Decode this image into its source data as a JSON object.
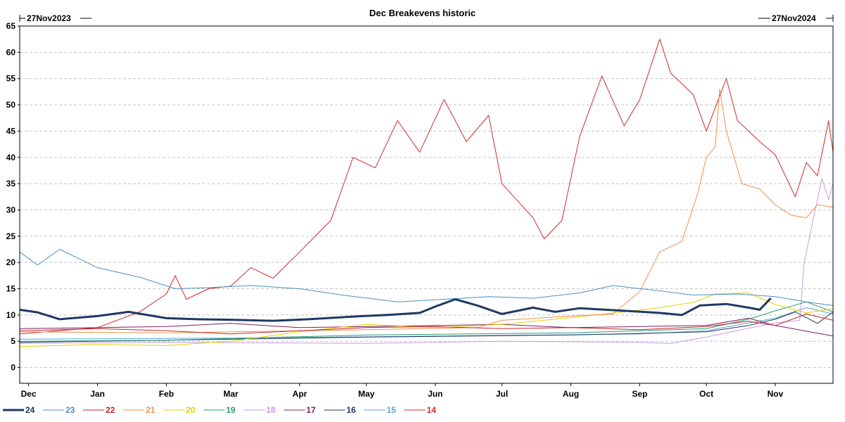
{
  "chart_data": {
    "type": "line",
    "title": "Dec Breakevens historic",
    "date_start_label": "27Nov2023",
    "date_end_label": "27Nov2024",
    "x_start": "2023-11-27",
    "x_end": "2024-11-27",
    "x_tick_labels": [
      {
        "label": "Dec",
        "date": "2023-12-01"
      },
      {
        "label": "Jan",
        "date": "2024-01-01"
      },
      {
        "label": "Feb",
        "date": "2024-02-01"
      },
      {
        "label": "Mar",
        "date": "2024-03-01"
      },
      {
        "label": "Apr",
        "date": "2024-04-01"
      },
      {
        "label": "May",
        "date": "2024-05-01"
      },
      {
        "label": "Jun",
        "date": "2024-06-01"
      },
      {
        "label": "Jul",
        "date": "2024-07-01"
      },
      {
        "label": "Aug",
        "date": "2024-08-01"
      },
      {
        "label": "Sep",
        "date": "2024-09-01"
      },
      {
        "label": "Oct",
        "date": "2024-10-01"
      },
      {
        "label": "Nov",
        "date": "2024-11-01"
      }
    ],
    "y_ticks": [
      0,
      5,
      10,
      15,
      20,
      25,
      30,
      35,
      40,
      45,
      50,
      55,
      60,
      65
    ],
    "ylim": [
      -3,
      65
    ],
    "grid": "horizontal dashed",
    "legend_position": "bottom",
    "series": [
      {
        "name": "24",
        "color": "#1f3864",
        "width": 3,
        "points": [
          [
            "2023-11-27",
            11
          ],
          [
            "2023-12-05",
            10.5
          ],
          [
            "2023-12-15",
            9.2
          ],
          [
            "2024-01-01",
            9.8
          ],
          [
            "2024-01-15",
            10.6
          ],
          [
            "2024-02-01",
            9.4
          ],
          [
            "2024-02-15",
            9.2
          ],
          [
            "2024-03-01",
            9.1
          ],
          [
            "2024-03-20",
            8.9
          ],
          [
            "2024-04-05",
            9.2
          ],
          [
            "2024-04-25",
            9.7
          ],
          [
            "2024-05-10",
            10.0
          ],
          [
            "2024-05-25",
            10.4
          ],
          [
            "2024-06-01",
            11.6
          ],
          [
            "2024-06-10",
            13.0
          ],
          [
            "2024-06-20",
            11.8
          ],
          [
            "2024-07-01",
            10.2
          ],
          [
            "2024-07-15",
            11.4
          ],
          [
            "2024-07-25",
            10.6
          ],
          [
            "2024-08-05",
            11.3
          ],
          [
            "2024-08-25",
            10.8
          ],
          [
            "2024-09-10",
            10.4
          ],
          [
            "2024-09-20",
            10.0
          ],
          [
            "2024-09-28",
            11.8
          ],
          [
            "2024-10-10",
            12.1
          ],
          [
            "2024-10-20",
            11.4
          ],
          [
            "2024-10-25",
            11.0
          ],
          [
            "2024-10-30",
            13.2
          ]
        ]
      },
      {
        "name": "23",
        "color": "#4a90c4",
        "width": 1,
        "points": [
          [
            "2023-11-27",
            22
          ],
          [
            "2023-12-05",
            19.5
          ],
          [
            "2023-12-15",
            22.5
          ],
          [
            "2024-01-01",
            19.0
          ],
          [
            "2024-01-20",
            17.2
          ],
          [
            "2024-02-05",
            15.0
          ],
          [
            "2024-02-20",
            15.2
          ],
          [
            "2024-03-10",
            15.6
          ],
          [
            "2024-04-01",
            15.0
          ],
          [
            "2024-04-20",
            13.8
          ],
          [
            "2024-05-15",
            12.5
          ],
          [
            "2024-06-05",
            13.0
          ],
          [
            "2024-06-25",
            13.5
          ],
          [
            "2024-07-15",
            13.2
          ],
          [
            "2024-08-05",
            14.2
          ],
          [
            "2024-08-20",
            15.6
          ],
          [
            "2024-09-10",
            14.6
          ],
          [
            "2024-09-25",
            13.8
          ],
          [
            "2024-10-15",
            14.0
          ],
          [
            "2024-11-01",
            13.5
          ],
          [
            "2024-11-15",
            12.5
          ],
          [
            "2024-11-27",
            11.8
          ]
        ]
      },
      {
        "name": "22",
        "color": "#c0262c",
        "width": 1,
        "points": [
          [
            "2023-11-27",
            7.0
          ],
          [
            "2024-01-01",
            7.4
          ],
          [
            "2024-02-01",
            7.0
          ],
          [
            "2024-03-01",
            6.4
          ],
          [
            "2024-04-01",
            7.0
          ],
          [
            "2024-05-01",
            7.6
          ],
          [
            "2024-06-01",
            7.8
          ],
          [
            "2024-07-01",
            7.4
          ],
          [
            "2024-08-01",
            7.6
          ],
          [
            "2024-09-01",
            7.2
          ],
          [
            "2024-10-01",
            7.8
          ],
          [
            "2024-10-20",
            8.8
          ],
          [
            "2024-11-01",
            8.0
          ],
          [
            "2024-11-15",
            10.2
          ],
          [
            "2024-11-27",
            9.0
          ]
        ]
      },
      {
        "name": "21",
        "color": "#f28e4a",
        "width": 1,
        "points": [
          [
            "2023-11-27",
            6.8
          ],
          [
            "2024-02-01",
            6.6
          ],
          [
            "2024-05-01",
            7.2
          ],
          [
            "2024-06-20",
            7.6
          ],
          [
            "2024-07-01",
            9.0
          ],
          [
            "2024-08-01",
            9.8
          ],
          [
            "2024-08-20",
            10.2
          ],
          [
            "2024-09-01",
            14.5
          ],
          [
            "2024-09-10",
            22.0
          ],
          [
            "2024-09-20",
            24.0
          ],
          [
            "2024-09-27",
            33.0
          ],
          [
            "2024-10-01",
            40.0
          ],
          [
            "2024-10-05",
            42.0
          ],
          [
            "2024-10-07",
            53.0
          ],
          [
            "2024-10-10",
            45.0
          ],
          [
            "2024-10-17",
            35.0
          ],
          [
            "2024-10-25",
            34.0
          ],
          [
            "2024-11-01",
            31.0
          ],
          [
            "2024-11-08",
            29.0
          ],
          [
            "2024-11-15",
            28.5
          ],
          [
            "2024-11-20",
            31.0
          ],
          [
            "2024-11-27",
            30.5
          ]
        ]
      },
      {
        "name": "20",
        "color": "#e0d400",
        "width": 1,
        "points": [
          [
            "2023-11-27",
            4.0
          ],
          [
            "2024-01-01",
            4.4
          ],
          [
            "2024-02-01",
            4.2
          ],
          [
            "2024-03-01",
            5.0
          ],
          [
            "2024-04-01",
            6.8
          ],
          [
            "2024-05-01",
            8.2
          ],
          [
            "2024-06-01",
            7.6
          ],
          [
            "2024-07-01",
            8.2
          ],
          [
            "2024-08-01",
            9.5
          ],
          [
            "2024-08-25",
            10.6
          ],
          [
            "2024-09-10",
            11.4
          ],
          [
            "2024-09-25",
            12.4
          ],
          [
            "2024-10-05",
            14.0
          ],
          [
            "2024-10-20",
            14.2
          ],
          [
            "2024-11-01",
            12.0
          ],
          [
            "2024-11-15",
            10.4
          ],
          [
            "2024-11-27",
            11.2
          ]
        ]
      },
      {
        "name": "19",
        "color": "#2e9a6e",
        "width": 1,
        "points": [
          [
            "2023-11-27",
            5.0
          ],
          [
            "2024-02-01",
            5.2
          ],
          [
            "2024-05-01",
            6.2
          ],
          [
            "2024-08-01",
            6.6
          ],
          [
            "2024-10-01",
            7.4
          ],
          [
            "2024-10-20",
            9.2
          ],
          [
            "2024-11-01",
            10.8
          ],
          [
            "2024-11-15",
            12.5
          ],
          [
            "2024-11-27",
            10.6
          ]
        ]
      },
      {
        "name": "18",
        "color": "#c99ae6",
        "width": 1,
        "points": [
          [
            "2023-11-27",
            4.6
          ],
          [
            "2024-02-01",
            4.8
          ],
          [
            "2024-05-01",
            4.6
          ],
          [
            "2024-07-01",
            5.0
          ],
          [
            "2024-09-01",
            4.8
          ],
          [
            "2024-09-15",
            4.6
          ],
          [
            "2024-10-01",
            5.8
          ],
          [
            "2024-10-20",
            7.5
          ],
          [
            "2024-11-01",
            8.5
          ],
          [
            "2024-11-12",
            9.0
          ],
          [
            "2024-11-14",
            20.0
          ],
          [
            "2024-11-16",
            24.0
          ],
          [
            "2024-11-19",
            30.0
          ],
          [
            "2024-11-22",
            36.0
          ],
          [
            "2024-11-25",
            32.0
          ],
          [
            "2024-11-27",
            35.0
          ]
        ]
      },
      {
        "name": "17",
        "color": "#7b1f5c",
        "width": 1,
        "points": [
          [
            "2023-11-27",
            7.4
          ],
          [
            "2024-01-01",
            7.6
          ],
          [
            "2024-02-01",
            7.8
          ],
          [
            "2024-03-01",
            8.4
          ],
          [
            "2024-04-01",
            7.6
          ],
          [
            "2024-05-01",
            7.8
          ],
          [
            "2024-06-01",
            8.0
          ],
          [
            "2024-07-01",
            8.2
          ],
          [
            "2024-08-01",
            7.6
          ],
          [
            "2024-09-01",
            7.8
          ],
          [
            "2024-10-01",
            8.0
          ],
          [
            "2024-10-20",
            9.4
          ],
          [
            "2024-11-01",
            8.0
          ],
          [
            "2024-11-27",
            6.0
          ]
        ]
      },
      {
        "name": "16",
        "color": "#223a5e",
        "width": 1,
        "points": [
          [
            "2023-11-27",
            4.8
          ],
          [
            "2024-02-01",
            5.2
          ],
          [
            "2024-05-01",
            5.8
          ],
          [
            "2024-08-01",
            6.2
          ],
          [
            "2024-10-01",
            6.8
          ],
          [
            "2024-10-20",
            8.0
          ],
          [
            "2024-11-01",
            9.2
          ],
          [
            "2024-11-10",
            10.6
          ],
          [
            "2024-11-20",
            8.4
          ],
          [
            "2024-11-27",
            10.6
          ]
        ]
      },
      {
        "name": "15",
        "color": "#5aa3d6",
        "width": 1,
        "points": [
          [
            "2023-11-27",
            5.4
          ],
          [
            "2024-03-01",
            5.6
          ],
          [
            "2024-06-01",
            6.0
          ],
          [
            "2024-09-01",
            6.4
          ],
          [
            "2024-10-01",
            7.0
          ],
          [
            "2024-10-20",
            8.5
          ],
          [
            "2024-11-01",
            9.4
          ],
          [
            "2024-11-15",
            11.4
          ],
          [
            "2024-11-27",
            10.2
          ]
        ]
      },
      {
        "name": "14",
        "color": "#d42a2a",
        "width": 1,
        "points": [
          [
            "2023-11-27",
            6.4
          ],
          [
            "2024-01-01",
            7.6
          ],
          [
            "2024-01-20",
            10.6
          ],
          [
            "2024-02-01",
            14.0
          ],
          [
            "2024-02-05",
            17.5
          ],
          [
            "2024-02-10",
            13.0
          ],
          [
            "2024-02-20",
            15.0
          ],
          [
            "2024-03-01",
            15.5
          ],
          [
            "2024-03-10",
            19.0
          ],
          [
            "2024-03-20",
            17.0
          ],
          [
            "2024-04-01",
            22.0
          ],
          [
            "2024-04-15",
            28.0
          ],
          [
            "2024-04-25",
            40.0
          ],
          [
            "2024-05-05",
            38.0
          ],
          [
            "2024-05-15",
            47.0
          ],
          [
            "2024-05-25",
            41.0
          ],
          [
            "2024-06-05",
            51.0
          ],
          [
            "2024-06-15",
            43.0
          ],
          [
            "2024-06-25",
            48.0
          ],
          [
            "2024-07-01",
            35.0
          ],
          [
            "2024-07-15",
            28.5
          ],
          [
            "2024-07-20",
            24.5
          ],
          [
            "2024-07-28",
            28.0
          ],
          [
            "2024-08-05",
            44.0
          ],
          [
            "2024-08-15",
            55.5
          ],
          [
            "2024-08-25",
            46.0
          ],
          [
            "2024-09-01",
            51.0
          ],
          [
            "2024-09-10",
            62.5
          ],
          [
            "2024-09-15",
            56.0
          ],
          [
            "2024-09-25",
            52.0
          ],
          [
            "2024-10-01",
            45.0
          ],
          [
            "2024-10-10",
            55.0
          ],
          [
            "2024-10-15",
            47.0
          ],
          [
            "2024-10-25",
            43.0
          ],
          [
            "2024-11-01",
            40.5
          ],
          [
            "2024-11-10",
            32.5
          ],
          [
            "2024-11-15",
            39.0
          ],
          [
            "2024-11-20",
            36.5
          ],
          [
            "2024-11-25",
            47.0
          ],
          [
            "2024-11-27",
            41.0
          ]
        ]
      }
    ]
  }
}
